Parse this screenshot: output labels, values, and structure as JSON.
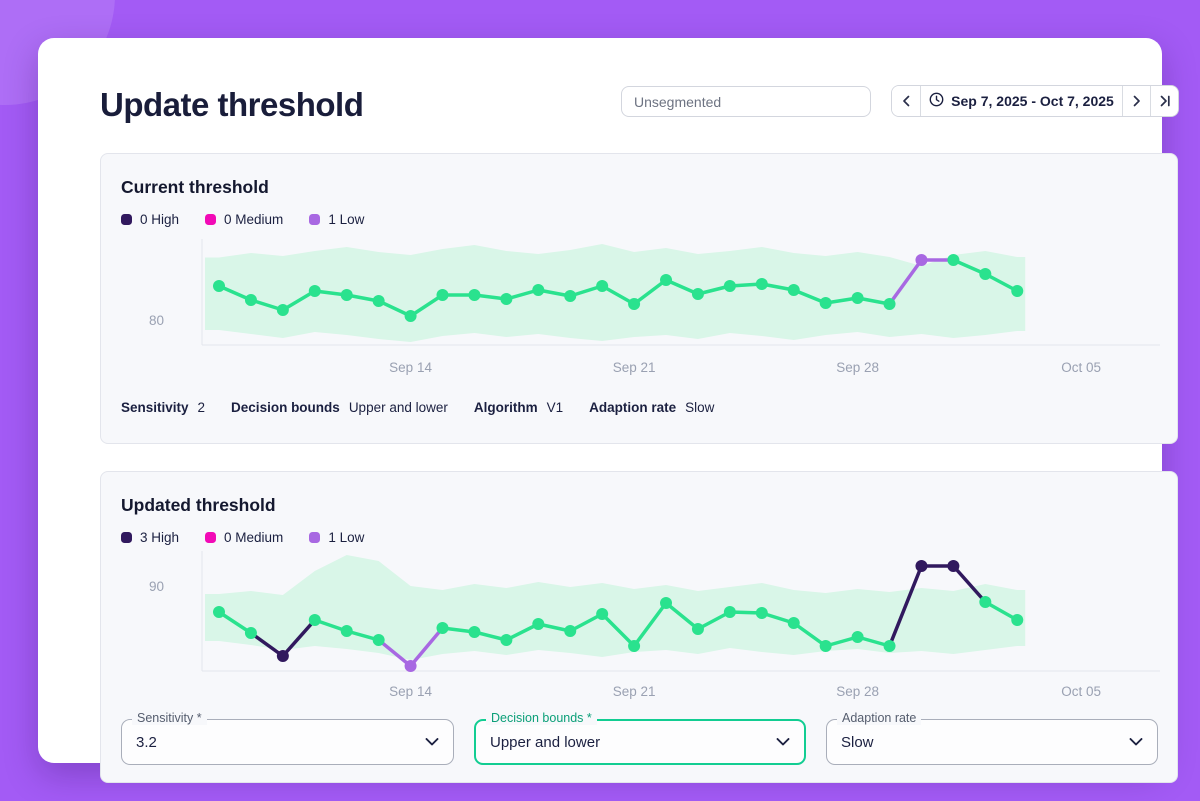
{
  "page": {
    "title": "Update threshold"
  },
  "header": {
    "segment_input": {
      "value": "Unsegmented"
    },
    "date_nav": {
      "range_label": "Sep 7, 2025 - Oct 7, 2025"
    }
  },
  "panels": [
    {
      "title": "Current threshold",
      "summary": [
        {
          "label": "Sensitivity",
          "value": "2"
        },
        {
          "label": "Decision bounds",
          "value": "Upper and lower"
        },
        {
          "label": "Algorithm",
          "value": "V1"
        },
        {
          "label": "Adaption rate",
          "value": "Slow"
        }
      ]
    },
    {
      "title": "Updated threshold",
      "fields": [
        {
          "label": "Sensitivity *",
          "value": "3.2",
          "highlight": false
        },
        {
          "label": "Decision bounds *",
          "value": "Upper and lower",
          "highlight": true
        },
        {
          "label": "Adaption rate",
          "value": "Slow",
          "highlight": false
        }
      ]
    }
  ],
  "chart_data": [
    {
      "type": "line",
      "title": "Current threshold",
      "legend": [
        {
          "label": "0 High",
          "color": "#31195e"
        },
        {
          "label": "0 Medium",
          "color": "#f20ab6"
        },
        {
          "label": "1 Low",
          "color": "#a868e2"
        }
      ],
      "ylim": [
        75,
        96.2
      ],
      "ytick": {
        "value": 80,
        "label": "80"
      },
      "xticks": [
        {
          "index": 6,
          "label": "Sep 14"
        },
        {
          "index": 13,
          "label": "Sep 21"
        },
        {
          "index": 20,
          "label": "Sep 28"
        },
        {
          "index": 27,
          "label": "Oct 05"
        }
      ],
      "values": [
        86.8,
        84.0,
        82.0,
        85.8,
        85.0,
        83.8,
        80.8,
        85.0,
        85.0,
        84.2,
        86.0,
        84.8,
        86.8,
        83.2,
        88.0,
        85.2,
        86.8,
        87.2,
        86.0,
        83.4,
        84.4,
        83.2,
        92.0,
        92.0,
        89.2,
        85.8
      ],
      "anomalies": {
        "22": "low"
      },
      "band_hi": [
        92.5,
        93.4,
        92.8,
        93.8,
        94.6,
        93.6,
        93.0,
        94.2,
        95.0,
        93.8,
        93.2,
        94.0,
        95.2,
        93.6,
        94.4,
        93.2,
        93.8,
        94.6,
        93.4,
        92.8,
        93.6,
        92.6,
        90.8,
        93.0,
        93.8,
        92.6
      ],
      "band_lo": [
        78.0,
        77.2,
        76.4,
        77.6,
        77.0,
        76.2,
        75.6,
        76.8,
        77.4,
        76.6,
        77.2,
        76.4,
        75.8,
        76.6,
        77.0,
        76.2,
        77.4,
        76.8,
        76.0,
        77.0,
        77.6,
        76.6,
        77.2,
        76.4,
        77.0,
        77.8
      ],
      "colors": {
        "normal": "#2ae28e",
        "high": "#31195e",
        "low": "#a868e2",
        "band": "#d9f6e8",
        "axis": "#e3e6ec",
        "tick": "#9aa1b2"
      }
    },
    {
      "type": "line",
      "title": "Updated threshold",
      "legend": [
        {
          "label": "3 High",
          "color": "#31195e"
        },
        {
          "label": "0 Medium",
          "color": "#f20ab6"
        },
        {
          "label": "1 Low",
          "color": "#a868e2"
        }
      ],
      "ylim": [
        73,
        97.4
      ],
      "ytick": {
        "value": 90,
        "label": "90"
      },
      "xticks": [
        {
          "index": 6,
          "label": "Sep 14"
        },
        {
          "index": 13,
          "label": "Sep 21"
        },
        {
          "index": 20,
          "label": "Sep 28"
        },
        {
          "index": 27,
          "label": "Oct 05"
        }
      ],
      "values": [
        84.8,
        80.6,
        76.0,
        83.2,
        81.0,
        79.2,
        74.0,
        81.6,
        80.8,
        79.2,
        82.4,
        81.0,
        84.4,
        78.0,
        86.6,
        81.4,
        84.8,
        84.6,
        82.6,
        78.0,
        79.8,
        78.0,
        94.0,
        94.0,
        86.8,
        83.2
      ],
      "anomalies": {
        "2": "high",
        "6": "low",
        "22": "high",
        "23": "high"
      },
      "band_hi": [
        88.4,
        89.0,
        88.2,
        93.0,
        96.2,
        95.0,
        90.0,
        89.2,
        90.4,
        89.6,
        90.8,
        89.8,
        90.6,
        89.4,
        90.2,
        89.0,
        89.8,
        90.6,
        89.2,
        88.6,
        89.4,
        88.8,
        89.6,
        89.0,
        90.4,
        89.2
      ],
      "band_lo": [
        79.0,
        78.2,
        77.2,
        78.0,
        77.4,
        76.6,
        75.2,
        76.4,
        77.0,
        76.2,
        77.2,
        76.6,
        75.8,
        76.8,
        77.2,
        76.4,
        77.6,
        76.8,
        76.2,
        77.0,
        77.4,
        76.6,
        77.0,
        76.4,
        77.2,
        78.0
      ],
      "colors": {
        "normal": "#2ae28e",
        "high": "#31195e",
        "low": "#a868e2",
        "band": "#d9f6e8",
        "axis": "#e3e6ec",
        "tick": "#9aa1b2"
      }
    }
  ]
}
